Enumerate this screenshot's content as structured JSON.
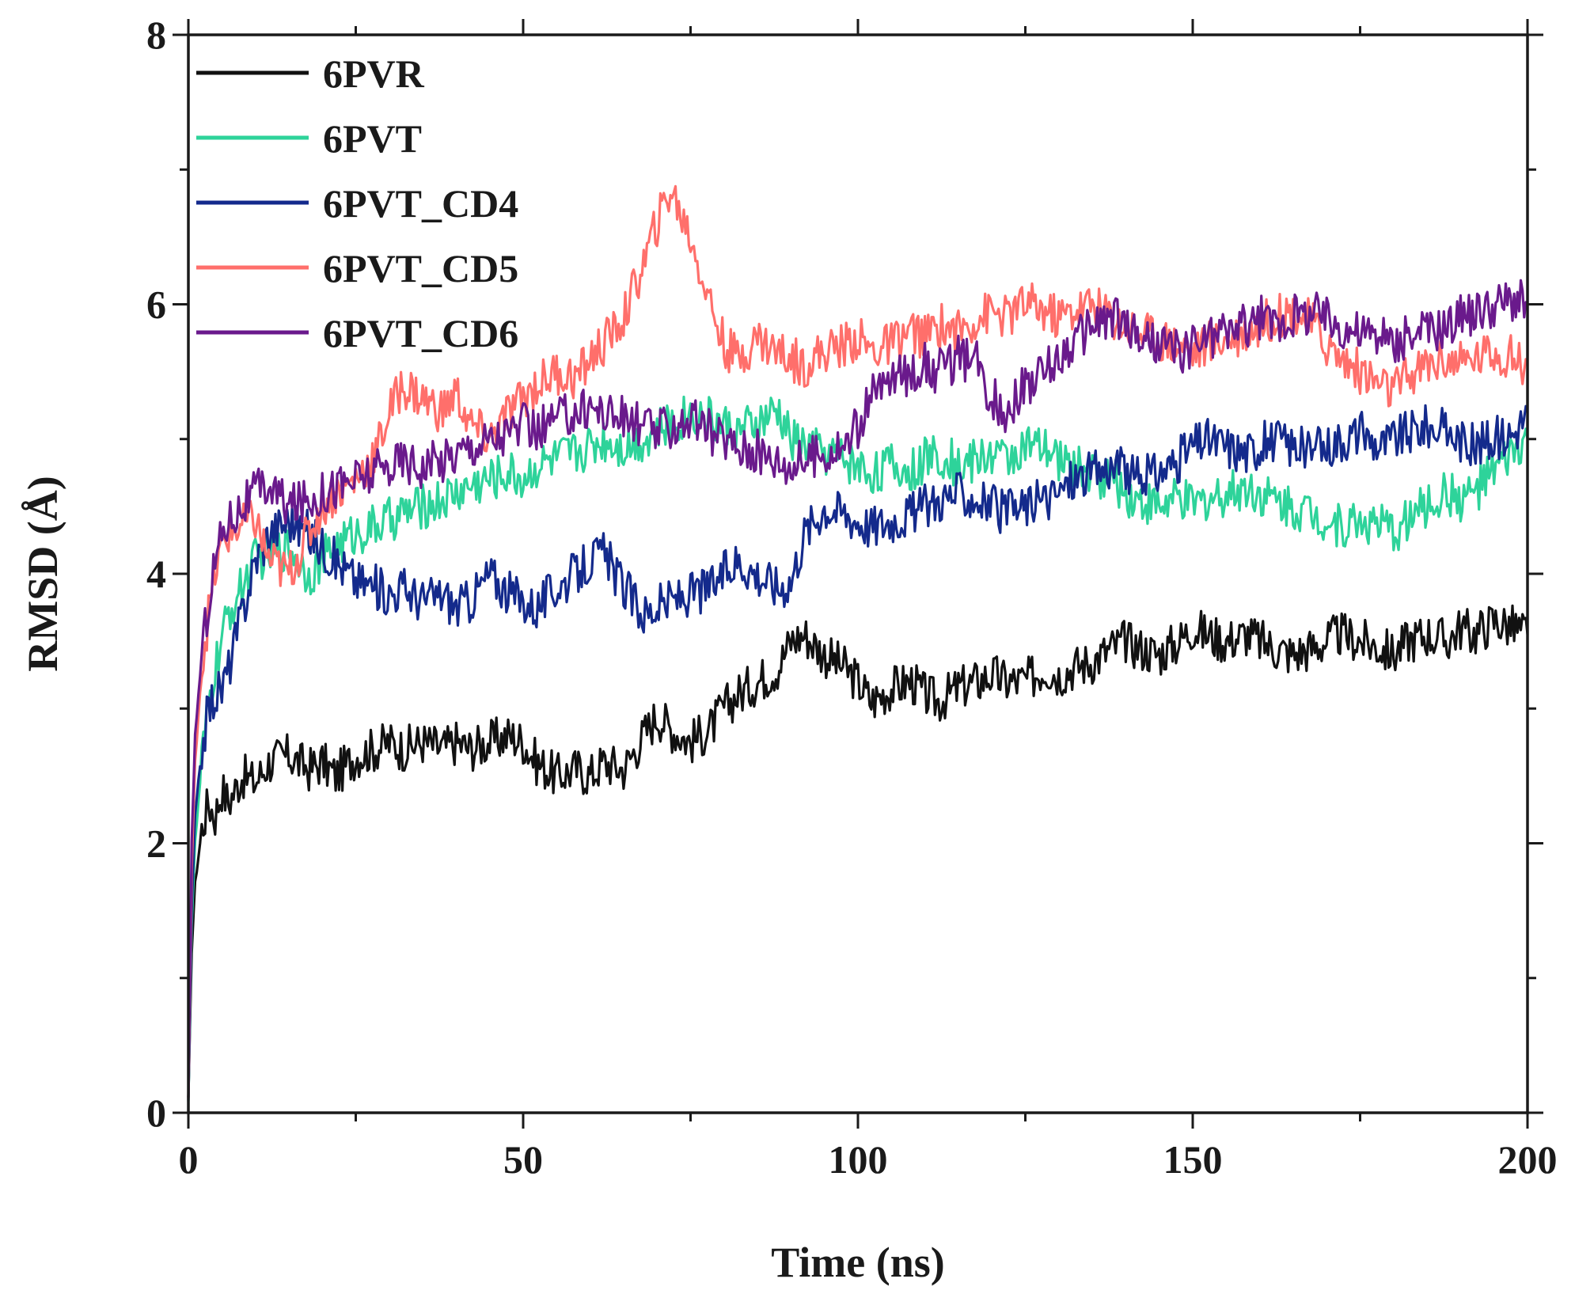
{
  "chart_data": {
    "type": "line",
    "title": "",
    "xlabel": "Time (ns)",
    "ylabel": "RMSD (Å)",
    "xlim": [
      0,
      200
    ],
    "ylim": [
      0,
      8
    ],
    "xticks": [
      0,
      50,
      100,
      150,
      200
    ],
    "yticks": [
      0,
      2,
      4,
      6,
      8
    ],
    "x_minor_step": 25,
    "y_minor_step": 1,
    "grid": false,
    "legend_position": "top-left",
    "x": [
      0,
      0.5,
      1,
      2,
      3,
      4,
      5,
      6,
      8,
      10,
      12,
      15,
      18,
      20,
      22,
      25,
      28,
      30,
      32,
      35,
      38,
      40,
      42,
      45,
      48,
      50,
      52,
      55,
      58,
      60,
      62,
      65,
      68,
      70,
      72,
      75,
      78,
      80,
      82,
      85,
      88,
      90,
      92,
      95,
      98,
      100,
      102,
      105,
      108,
      110,
      112,
      115,
      118,
      120,
      122,
      125,
      128,
      130,
      132,
      135,
      138,
      140,
      142,
      145,
      148,
      150,
      152,
      155,
      158,
      160,
      162,
      165,
      168,
      170,
      172,
      175,
      178,
      180,
      182,
      185,
      188,
      190,
      192,
      195,
      198,
      200
    ],
    "series": [
      {
        "name": "6PVR",
        "color": "#111111",
        "values": [
          0.1,
          1.2,
          1.7,
          2.1,
          2.3,
          2.2,
          2.4,
          2.3,
          2.5,
          2.45,
          2.6,
          2.65,
          2.55,
          2.6,
          2.5,
          2.65,
          2.7,
          2.75,
          2.7,
          2.75,
          2.7,
          2.75,
          2.7,
          2.75,
          2.8,
          2.75,
          2.6,
          2.5,
          2.55,
          2.5,
          2.6,
          2.55,
          2.8,
          2.95,
          2.85,
          2.75,
          2.85,
          3.0,
          3.1,
          3.2,
          3.3,
          3.5,
          3.55,
          3.4,
          3.3,
          3.2,
          3.05,
          3.15,
          3.2,
          3.1,
          3.05,
          3.15,
          3.2,
          3.25,
          3.2,
          3.2,
          3.3,
          3.25,
          3.3,
          3.35,
          3.45,
          3.5,
          3.45,
          3.4,
          3.5,
          3.6,
          3.55,
          3.5,
          3.55,
          3.5,
          3.45,
          3.4,
          3.45,
          3.5,
          3.55,
          3.5,
          3.45,
          3.4,
          3.5,
          3.55,
          3.5,
          3.6,
          3.55,
          3.65,
          3.6,
          3.55
        ]
      },
      {
        "name": "6PVT",
        "color": "#2ED39A",
        "values": [
          0.1,
          1.4,
          2.0,
          2.6,
          3.0,
          3.3,
          3.5,
          3.7,
          3.9,
          4.1,
          4.15,
          4.2,
          4.0,
          4.1,
          4.2,
          4.3,
          4.35,
          4.4,
          4.45,
          4.5,
          4.55,
          4.6,
          4.65,
          4.7,
          4.75,
          4.7,
          4.8,
          4.85,
          4.9,
          4.95,
          5.0,
          4.95,
          5.0,
          5.05,
          5.1,
          5.2,
          5.15,
          5.1,
          5.05,
          5.1,
          5.2,
          5.0,
          4.95,
          4.9,
          4.85,
          4.8,
          4.75,
          4.8,
          4.75,
          4.85,
          4.9,
          4.8,
          4.85,
          4.9,
          4.85,
          4.95,
          4.9,
          4.85,
          4.8,
          4.75,
          4.7,
          4.6,
          4.55,
          4.5,
          4.55,
          4.5,
          4.55,
          4.6,
          4.65,
          4.6,
          4.55,
          4.5,
          4.45,
          4.4,
          4.35,
          4.4,
          4.35,
          4.3,
          4.4,
          4.5,
          4.6,
          4.55,
          4.6,
          4.75,
          4.9,
          5.0
        ]
      },
      {
        "name": "6PVT_CD4",
        "color": "#142A8C",
        "values": [
          0.1,
          1.5,
          2.2,
          2.7,
          3.0,
          3.1,
          3.15,
          3.3,
          3.7,
          4.1,
          4.3,
          4.4,
          4.3,
          4.2,
          4.1,
          3.95,
          3.9,
          3.85,
          3.9,
          3.8,
          3.85,
          3.75,
          3.8,
          4.0,
          3.85,
          3.8,
          3.75,
          3.9,
          4.0,
          4.1,
          4.15,
          3.9,
          3.7,
          3.75,
          3.8,
          3.85,
          3.9,
          4.0,
          4.1,
          4.0,
          3.9,
          3.95,
          4.3,
          4.5,
          4.45,
          4.4,
          4.35,
          4.4,
          4.45,
          4.5,
          4.55,
          4.6,
          4.55,
          4.5,
          4.45,
          4.5,
          4.55,
          4.6,
          4.7,
          4.75,
          4.8,
          4.75,
          4.7,
          4.75,
          4.85,
          4.95,
          5.0,
          4.95,
          4.9,
          4.95,
          5.0,
          4.95,
          4.9,
          4.95,
          5.0,
          5.05,
          4.95,
          5.0,
          5.05,
          5.1,
          5.05,
          5.0,
          4.95,
          5.0,
          5.05,
          5.2
        ]
      },
      {
        "name": "6PVT_CD5",
        "color": "#FF6F6B",
        "values": [
          0.1,
          1.8,
          2.6,
          3.3,
          3.7,
          4.0,
          4.2,
          4.3,
          4.35,
          4.4,
          4.1,
          4.0,
          4.3,
          4.5,
          4.6,
          4.7,
          4.9,
          5.2,
          5.4,
          5.3,
          5.2,
          5.35,
          5.1,
          5.0,
          5.2,
          5.3,
          5.4,
          5.5,
          5.45,
          5.6,
          5.7,
          5.9,
          6.3,
          6.6,
          6.85,
          6.5,
          6.0,
          5.7,
          5.6,
          5.75,
          5.65,
          5.6,
          5.55,
          5.65,
          5.7,
          5.75,
          5.65,
          5.7,
          5.8,
          5.75,
          5.85,
          5.8,
          5.9,
          5.95,
          5.9,
          6.0,
          5.95,
          5.9,
          5.95,
          6.0,
          5.9,
          5.85,
          5.8,
          5.75,
          5.7,
          5.65,
          5.7,
          5.75,
          5.8,
          5.85,
          5.9,
          5.95,
          5.85,
          5.7,
          5.6,
          5.5,
          5.4,
          5.35,
          5.45,
          5.55,
          5.6,
          5.55,
          5.6,
          5.65,
          5.6,
          5.55
        ]
      },
      {
        "name": "6PVT_CD6",
        "color": "#6A1A8C",
        "values": [
          0.1,
          2.0,
          2.8,
          3.4,
          3.8,
          4.1,
          4.3,
          4.4,
          4.5,
          4.6,
          4.65,
          4.5,
          4.55,
          4.6,
          4.65,
          4.7,
          4.75,
          4.8,
          4.85,
          4.8,
          4.85,
          4.9,
          4.95,
          5.0,
          5.05,
          5.1,
          5.05,
          5.15,
          5.2,
          5.25,
          5.2,
          5.15,
          5.1,
          5.05,
          5.1,
          5.15,
          5.05,
          5.0,
          4.95,
          4.9,
          4.85,
          4.8,
          4.85,
          4.9,
          4.95,
          5.1,
          5.3,
          5.45,
          5.5,
          5.55,
          5.5,
          5.6,
          5.55,
          5.3,
          5.2,
          5.4,
          5.5,
          5.6,
          5.7,
          5.85,
          5.9,
          5.85,
          5.75,
          5.7,
          5.65,
          5.7,
          5.75,
          5.8,
          5.85,
          5.9,
          5.85,
          5.9,
          5.95,
          5.9,
          5.85,
          5.8,
          5.75,
          5.7,
          5.75,
          5.8,
          5.85,
          5.9,
          5.95,
          6.0,
          6.05,
          6.0
        ]
      }
    ]
  }
}
